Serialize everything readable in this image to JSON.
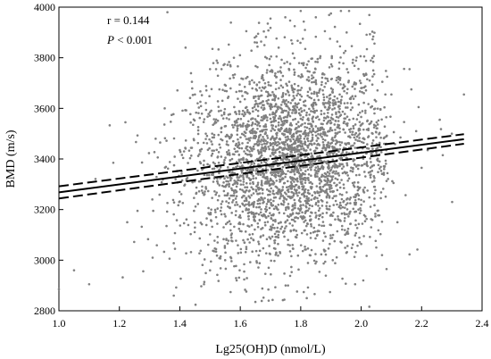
{
  "chart_data": {
    "type": "scatter",
    "title": "",
    "xlabel": "Lg25(OH)D (nmol/L)",
    "ylabel": "BMD (m/s)",
    "xlim": [
      1.0,
      2.4
    ],
    "ylim": [
      2800,
      4000
    ],
    "xticks": [
      "1.0",
      "1.2",
      "1.4",
      "1.6",
      "1.8",
      "2.0",
      "2.2",
      "2.4"
    ],
    "yticks": [
      "2800",
      "3000",
      "3200",
      "3400",
      "3600",
      "3800",
      "4000"
    ],
    "grid": false,
    "point_color": "#808080",
    "annotations": {
      "r_text": "r = 0.144",
      "p_symbol": "P",
      "p_text": " < 0.001"
    },
    "regression": {
      "fit": {
        "x": [
          1.0,
          2.34
        ],
        "y": [
          3268,
          3478
        ]
      },
      "ci_upper": {
        "x": [
          1.0,
          2.34
        ],
        "y": [
          3292,
          3498
        ]
      },
      "ci_lower": {
        "x": [
          1.0,
          2.34
        ],
        "y": [
          3244,
          3460
        ]
      }
    },
    "points": [
      [
        1.0,
        2885
      ],
      [
        1.05,
        2960
      ],
      [
        1.1,
        2905
      ],
      [
        1.18,
        3385
      ],
      [
        1.22,
        3545
      ],
      [
        1.26,
        3195
      ],
      [
        1.31,
        3010
      ],
      [
        1.35,
        3600
      ],
      [
        1.32,
        3480
      ],
      [
        1.4,
        3435
      ],
      [
        1.44,
        3705
      ],
      [
        1.38,
        2860
      ],
      [
        1.48,
        2905
      ],
      [
        1.52,
        3755
      ],
      [
        1.55,
        3000
      ],
      [
        1.58,
        3605
      ],
      [
        1.62,
        3905
      ],
      [
        1.65,
        2835
      ],
      [
        1.68,
        3850
      ],
      [
        1.7,
        3955
      ],
      [
        1.72,
        3805
      ],
      [
        1.75,
        2900
      ],
      [
        1.78,
        3925
      ],
      [
        1.8,
        3985
      ],
      [
        1.82,
        2850
      ],
      [
        1.85,
        3960
      ],
      [
        1.88,
        3905
      ],
      [
        1.9,
        3975
      ],
      [
        1.93,
        3845
      ],
      [
        1.96,
        3985
      ],
      [
        1.98,
        2905
      ],
      [
        2.01,
        3805
      ],
      [
        2.04,
        3750
      ],
      [
        2.07,
        3705
      ],
      [
        2.1,
        3655
      ],
      [
        2.13,
        3485
      ],
      [
        2.16,
        3755
      ],
      [
        2.19,
        3605
      ],
      [
        2.22,
        3435
      ],
      [
        2.26,
        3555
      ],
      [
        2.3,
        3500
      ],
      [
        2.34,
        3655
      ],
      [
        2.27,
        3415
      ],
      [
        2.2,
        3365
      ],
      [
        2.12,
        3150
      ],
      [
        2.05,
        3050
      ],
      [
        1.74,
        3625
      ],
      [
        1.76,
        3585
      ],
      [
        1.79,
        3670
      ],
      [
        1.84,
        3550
      ]
    ]
  }
}
